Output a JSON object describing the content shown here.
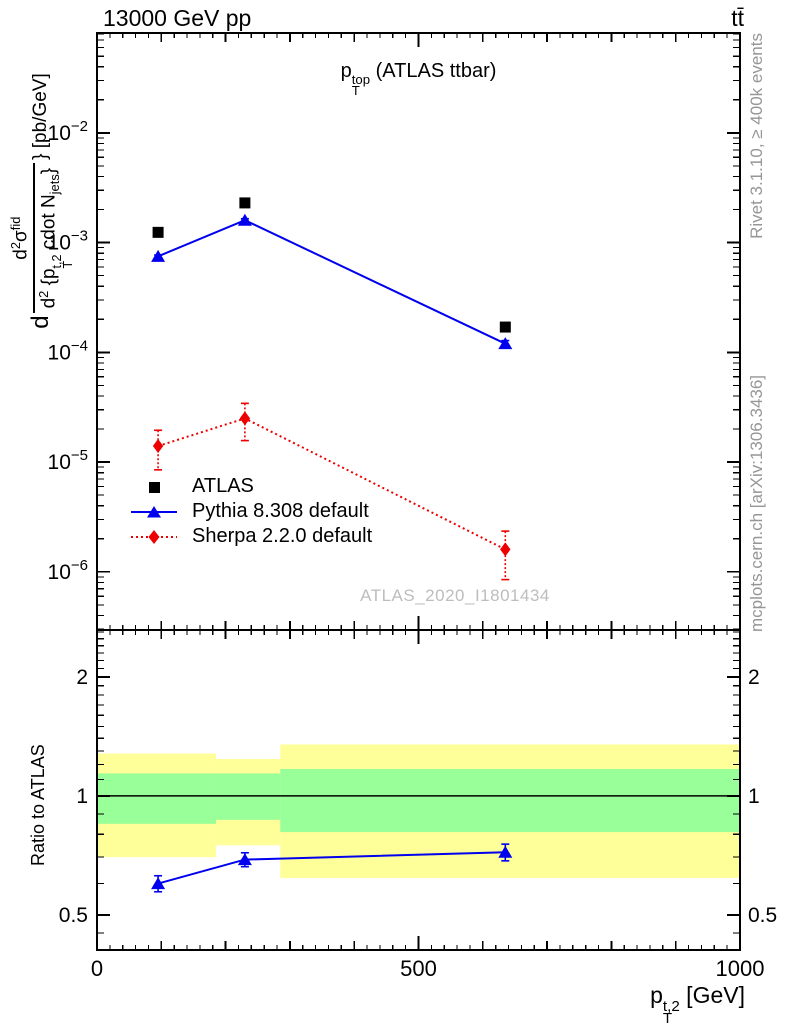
{
  "header": {
    "beam": "13000 GeV pp",
    "process": "tt̄"
  },
  "side_notes": {
    "top": "Rivet 3.1.10, ≥ 400k events",
    "bottom": "mcplots.cern.ch [arXiv:1306.3436]"
  },
  "watermark": "ATLAS_2020_I1801434",
  "colors": {
    "frame": "#000000",
    "muted_text": "#969696",
    "watermark": "#bdbdbd",
    "band_yellow": "#ffff99",
    "band_green": "#99ff99"
  },
  "chart_data": [
    {
      "type": "scatter",
      "panel": "main",
      "title": "p_{T}^{top} (ATLAS ttbar)",
      "ylabel_prefix": "d",
      "ylabel_numerator": "d^{2}σ^{fid}",
      "ylabel_denominator": "d^{2} {p_{T}^{t,2} cdot N_{jets}}",
      "ylabel_suffix": "} [pb/GeV]",
      "yunits": "pb/GeV",
      "xlim": [
        0,
        1000
      ],
      "ylog": true,
      "ylim_log10": [
        -6.53,
        -1.09
      ],
      "yticks_exp": [
        -2,
        -3,
        -4,
        -5,
        -6
      ],
      "xticks": {
        "major": [
          0,
          500,
          1000
        ],
        "medium_step": 100,
        "minor_step": 20
      },
      "legend_position": "left-middle",
      "series": [
        {
          "name": "ATLAS",
          "marker": "square",
          "color": "#000000",
          "line": "none",
          "x": [
            95,
            230,
            635
          ],
          "y": [
            0.00124,
            0.0023,
            0.00017
          ]
        },
        {
          "name": "Pythia 8.308 default",
          "marker": "triangle",
          "color": "#0000ee",
          "line": "solid",
          "x": [
            95,
            230,
            635
          ],
          "y": [
            0.00075,
            0.0016,
            0.00012
          ],
          "yerr": [
            2e-05,
            5e-05,
            8e-06
          ]
        },
        {
          "name": "Sherpa 2.2.0 default",
          "marker": "diamond",
          "color": "#ee0000",
          "line": "dotted",
          "x": [
            95,
            230,
            635
          ],
          "y": [
            1.4e-05,
            2.5e-05,
            1.6e-06
          ],
          "yerr": [
            5.5e-06,
            9.3e-06,
            7.5e-07
          ]
        }
      ]
    },
    {
      "type": "ratio",
      "panel": "ratio",
      "ylabel": "Ratio to ATLAS",
      "xlabel": "p_{T}^{t,2} [GeV]",
      "xlim": [
        0,
        1000
      ],
      "ylog": true,
      "ylim_log10": [
        -0.39,
        0.42
      ],
      "yticks": [
        2,
        1,
        0.5
      ],
      "yticks_minor": [
        0.45,
        0.6,
        0.7,
        0.8,
        0.9,
        1.1,
        1.2,
        1.3,
        1.4,
        1.5,
        1.6,
        1.7,
        1.8,
        1.9,
        2.1,
        2.2,
        2.3,
        2.4,
        2.5,
        2.6
      ],
      "reference_line": 1,
      "bands": [
        {
          "x0": 0,
          "x1": 185,
          "yellow_lo": 0.7,
          "yellow_hi": 1.28,
          "green_lo": 0.85,
          "green_hi": 1.14
        },
        {
          "x0": 185,
          "x1": 285,
          "yellow_lo": 0.75,
          "yellow_hi": 1.24,
          "green_lo": 0.87,
          "green_hi": 1.14
        },
        {
          "x0": 285,
          "x1": 1000,
          "yellow_lo": 0.62,
          "yellow_hi": 1.35,
          "green_lo": 0.81,
          "green_hi": 1.17
        }
      ],
      "series": [
        {
          "name": "Pythia 8.308 default",
          "marker": "triangle",
          "color": "#0000ee",
          "line": "solid",
          "x": [
            95,
            230,
            635
          ],
          "y": [
            0.6,
            0.69,
            0.72
          ],
          "yerr": [
            0.028,
            0.028,
            0.035
          ]
        }
      ]
    }
  ]
}
